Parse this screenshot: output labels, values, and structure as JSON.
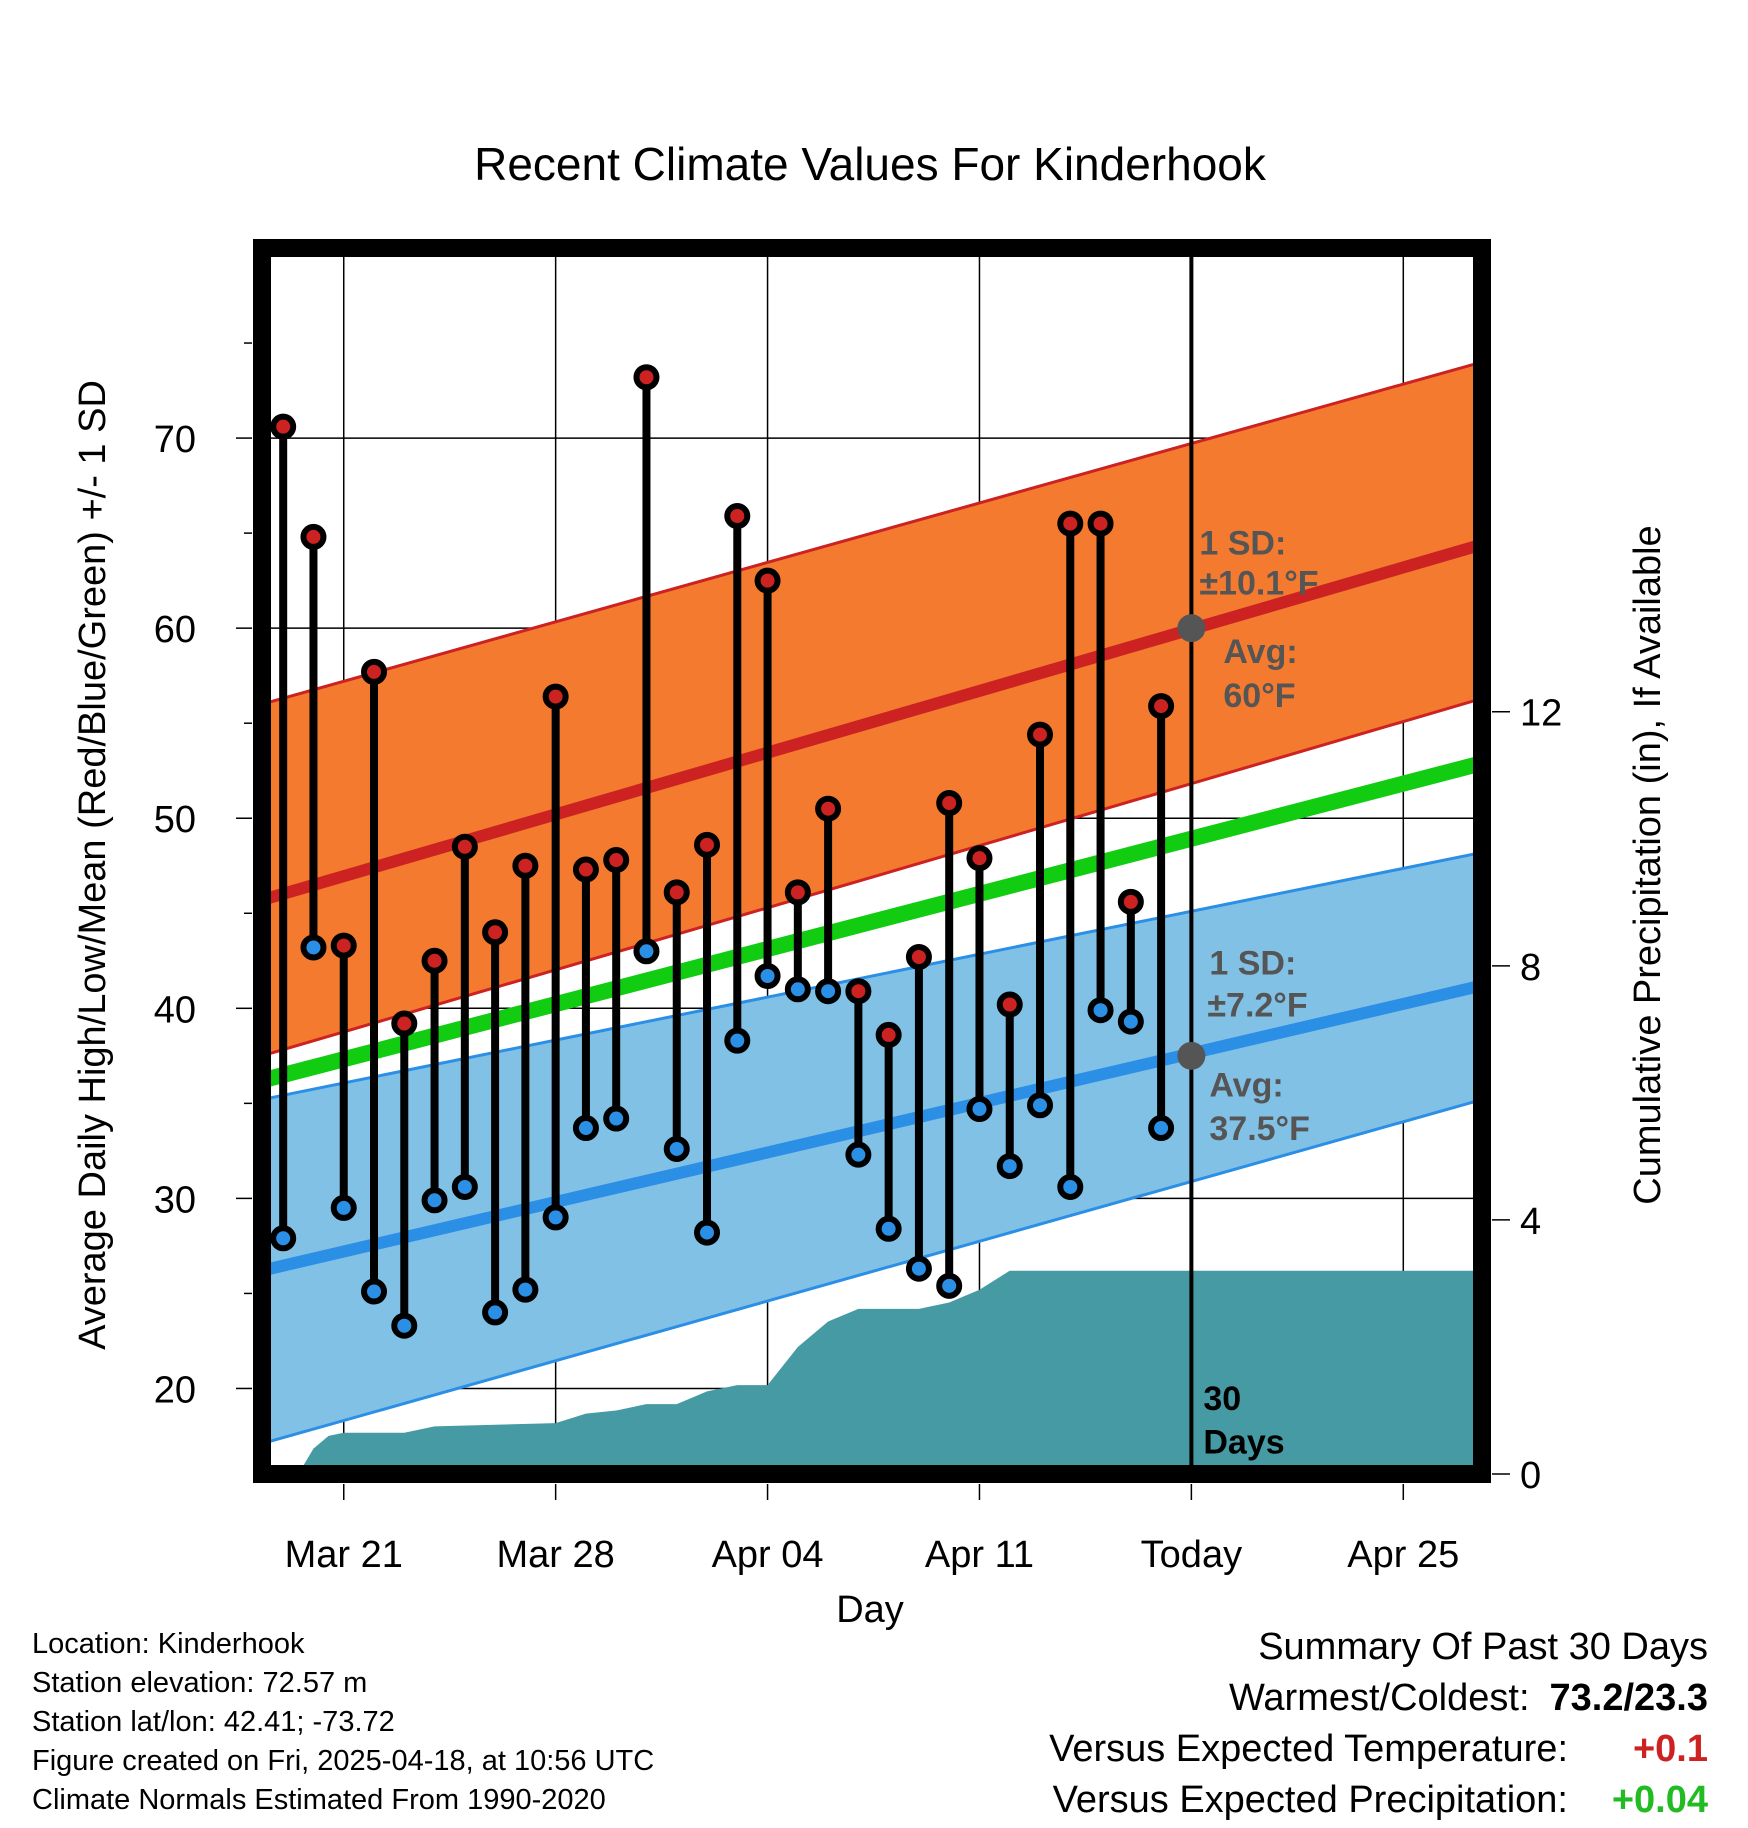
{
  "chart_data": {
    "type": "line",
    "title": "Recent Climate Values For Kinderhook",
    "xlabel": "Day",
    "ylabel": "Average Daily High/Low/Mean (Red/Blue/Green) +/- 1 SD",
    "y2label": "Cumulative Precipitation (in), If Available",
    "x_tick_labels": [
      "Mar 21",
      "Mar 28",
      "Apr 04",
      "Apr 11",
      "Today",
      "Apr 25"
    ],
    "x_tick_days": [
      0,
      7,
      14,
      21,
      28,
      35
    ],
    "xlim": [
      -2.7,
      37.6
    ],
    "ylim": [
      15.5,
      80
    ],
    "y_ticks": [
      20,
      30,
      40,
      50,
      60,
      70
    ],
    "y2lim": [
      0,
      19.3
    ],
    "y2_ticks": [
      0,
      4,
      8,
      12
    ],
    "grid": true,
    "colors": {
      "high": "#cc2222",
      "low": "#2b8fe6",
      "mean": "#11cc11",
      "high_band": "#f47a30",
      "low_band": "#82c1e6",
      "precip": "#459aa3",
      "marker": "#555555",
      "warm": "#cc2222",
      "wet": "#22bb22"
    },
    "normals": {
      "x": [
        -2.7,
        37.6
      ],
      "high": [
        45.7,
        64.4
      ],
      "high_upper": [
        56.0,
        74.0
      ],
      "high_lower": [
        37.5,
        56.3
      ],
      "low": [
        26.2,
        41.2
      ],
      "low_upper": [
        35.2,
        48.2
      ],
      "low_lower": [
        17.1,
        35.2
      ],
      "mean": [
        36.2,
        52.9
      ]
    },
    "daily": {
      "day": [
        -2,
        -1,
        0,
        1,
        2,
        3,
        4,
        5,
        6,
        7,
        8,
        9,
        10,
        11,
        12,
        13,
        14,
        15,
        16,
        17,
        18,
        19,
        20,
        21,
        22,
        23,
        24,
        25,
        26,
        27
      ],
      "high": [
        70.6,
        64.8,
        43.3,
        57.7,
        39.2,
        42.5,
        48.5,
        44.0,
        47.5,
        56.4,
        47.3,
        47.8,
        73.2,
        46.1,
        48.6,
        65.9,
        62.5,
        46.1,
        50.5,
        40.9,
        38.6,
        42.7,
        50.8,
        47.9,
        40.2,
        54.4,
        65.5,
        65.5,
        45.6,
        55.9
      ],
      "low": [
        27.9,
        43.2,
        29.5,
        25.1,
        23.3,
        29.9,
        30.6,
        24.0,
        25.2,
        29.0,
        33.7,
        34.2,
        43.0,
        32.6,
        28.2,
        38.3,
        41.7,
        41.0,
        40.9,
        32.3,
        28.4,
        26.3,
        25.4,
        34.7,
        31.7,
        34.9,
        30.6,
        39.9,
        39.3,
        33.7
      ]
    },
    "precipitation": {
      "day": [
        -2.7,
        -1.5,
        -1.0,
        -0.5,
        0,
        2,
        3,
        7,
        8,
        9,
        10,
        11,
        12,
        13,
        14,
        15,
        16,
        17,
        18,
        19,
        20,
        21,
        22,
        37.6
      ],
      "cumulative": [
        0,
        0,
        0.4,
        0.6,
        0.65,
        0.65,
        0.75,
        0.8,
        0.95,
        1.0,
        1.1,
        1.1,
        1.3,
        1.4,
        1.4,
        2.0,
        2.4,
        2.6,
        2.6,
        2.6,
        2.7,
        2.9,
        3.2,
        3.2
      ],
      "step_day": 23,
      "step_value": 3.2
    },
    "today_day": 28,
    "annotations": {
      "high_sd": "1 SD:",
      "high_sd_value": "±10.1°F",
      "high_avg": "Avg:",
      "high_avg_value": "60°F",
      "high_avg_y": 60.0,
      "low_sd": "1 SD:",
      "low_sd_value": "±7.2°F",
      "low_avg": "Avg:",
      "low_avg_value": "37.5°F",
      "low_avg_y": 37.5,
      "days_number": "30",
      "days_label": "Days"
    }
  },
  "info": {
    "location": "Location: Kinderhook",
    "elevation": "Station elevation: 72.57 m",
    "latlon": "Station lat/lon: 42.41; -73.72",
    "created": "Figure created on Fri, 2025-04-18, at 10:56 UTC",
    "normals": "Climate Normals Estimated From 1990-2020"
  },
  "summary": {
    "title": "Summary Of Past 30 Days",
    "warmest_coldest_label": "Warmest/Coldest:",
    "warmest_coldest_value": "73.2/23.3",
    "temp_label": "Versus Expected Temperature:",
    "temp_value": "+0.1",
    "precip_label": "Versus Expected Precipitation:",
    "precip_value": "+0.04"
  }
}
